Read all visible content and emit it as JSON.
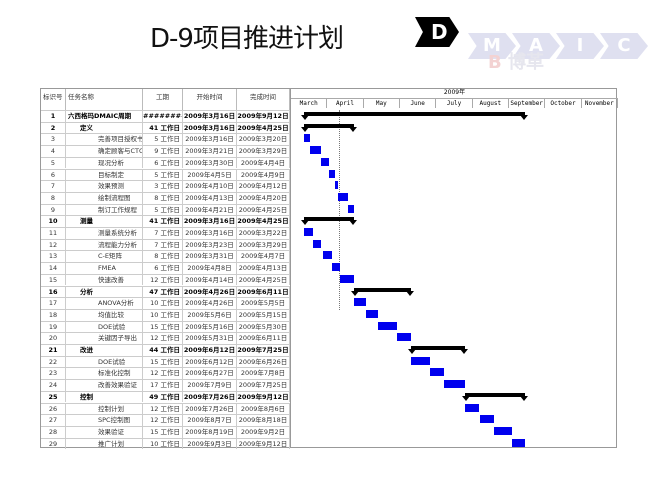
{
  "title": "D-9项目推进计划",
  "logo": {
    "letters": [
      "D",
      "M",
      "A",
      "I",
      "C"
    ],
    "watermark": "博革"
  },
  "table": {
    "headers": [
      "标识号",
      "任务名称",
      "工期",
      "开始时间",
      "完成时间"
    ],
    "rows": [
      {
        "id": "1",
        "name": "六西格玛DMAIC周期",
        "duration": "########",
        "start": "2009年3月16日",
        "end": "2009年9月12日",
        "summary": true,
        "indent": 0
      },
      {
        "id": "2",
        "name": "定义",
        "duration": "41 工作日",
        "start": "2009年3月16日",
        "end": "2009年4月25日",
        "summary": true,
        "indent": 1
      },
      {
        "id": "3",
        "name": "完善项目授权书",
        "duration": "5 工作日",
        "start": "2009年3月16日",
        "end": "2009年3月20日",
        "indent": 2
      },
      {
        "id": "4",
        "name": "确定顾客与CTQ",
        "duration": "9 工作日",
        "start": "2009年3月21日",
        "end": "2009年3月29日",
        "indent": 2
      },
      {
        "id": "5",
        "name": "现况分析",
        "duration": "6 工作日",
        "start": "2009年3月30日",
        "end": "2009年4月4日",
        "indent": 2
      },
      {
        "id": "6",
        "name": "目标制定",
        "duration": "5 工作日",
        "start": "2009年4月5日",
        "end": "2009年4月9日",
        "indent": 2
      },
      {
        "id": "7",
        "name": "效果预测",
        "duration": "3 工作日",
        "start": "2009年4月10日",
        "end": "2009年4月12日",
        "indent": 2
      },
      {
        "id": "8",
        "name": "绘制流程图",
        "duration": "8 工作日",
        "start": "2009年4月13日",
        "end": "2009年4月20日",
        "indent": 2
      },
      {
        "id": "9",
        "name": "制订工作规程",
        "duration": "5 工作日",
        "start": "2009年4月21日",
        "end": "2009年4月25日",
        "indent": 2
      },
      {
        "id": "10",
        "name": "测量",
        "duration": "41 工作日",
        "start": "2009年3月16日",
        "end": "2009年4月25日",
        "summary": true,
        "indent": 1
      },
      {
        "id": "11",
        "name": "测量系统分析",
        "duration": "7 工作日",
        "start": "2009年3月16日",
        "end": "2009年3月22日",
        "indent": 2
      },
      {
        "id": "12",
        "name": "流程能力分析",
        "duration": "7 工作日",
        "start": "2009年3月23日",
        "end": "2009年3月29日",
        "indent": 2
      },
      {
        "id": "13",
        "name": "C-E矩阵",
        "duration": "8 工作日",
        "start": "2009年3月31日",
        "end": "2009年4月7日",
        "indent": 2
      },
      {
        "id": "14",
        "name": "FMEA",
        "duration": "6 工作日",
        "start": "2009年4月8日",
        "end": "2009年4月13日",
        "indent": 2
      },
      {
        "id": "15",
        "name": "快速改善",
        "duration": "12 工作日",
        "start": "2009年4月14日",
        "end": "2009年4月25日",
        "indent": 2
      },
      {
        "id": "16",
        "name": "分析",
        "duration": "47 工作日",
        "start": "2009年4月26日",
        "end": "2009年6月11日",
        "summary": true,
        "indent": 1
      },
      {
        "id": "17",
        "name": "ANOVA分析",
        "duration": "10 工作日",
        "start": "2009年4月26日",
        "end": "2009年5月5日",
        "indent": 2
      },
      {
        "id": "18",
        "name": "均值比较",
        "duration": "10 工作日",
        "start": "2009年5月6日",
        "end": "2009年5月15日",
        "indent": 2
      },
      {
        "id": "19",
        "name": "DOE试验",
        "duration": "15 工作日",
        "start": "2009年5月16日",
        "end": "2009年5月30日",
        "indent": 2
      },
      {
        "id": "20",
        "name": "关键因子导出",
        "duration": "12 工作日",
        "start": "2009年5月31日",
        "end": "2009年6月11日",
        "indent": 2
      },
      {
        "id": "21",
        "name": "改进",
        "duration": "44 工作日",
        "start": "2009年6月12日",
        "end": "2009年7月25日",
        "summary": true,
        "indent": 1
      },
      {
        "id": "22",
        "name": "DOE试验",
        "duration": "15 工作日",
        "start": "2009年6月12日",
        "end": "2009年6月26日",
        "indent": 2
      },
      {
        "id": "23",
        "name": "标准化控制",
        "duration": "12 工作日",
        "start": "2009年6月27日",
        "end": "2009年7月8日",
        "indent": 2
      },
      {
        "id": "24",
        "name": "改善效果验证",
        "duration": "17 工作日",
        "start": "2009年7月9日",
        "end": "2009年7月25日",
        "indent": 2
      },
      {
        "id": "25",
        "name": "控制",
        "duration": "49 工作日",
        "start": "2009年7月26日",
        "end": "2009年9月12日",
        "summary": true,
        "indent": 1
      },
      {
        "id": "26",
        "name": "控制计划",
        "duration": "12 工作日",
        "start": "2009年7月26日",
        "end": "2009年8月6日",
        "indent": 2
      },
      {
        "id": "27",
        "name": "SPC控制图",
        "duration": "12 工作日",
        "start": "2009年8月7日",
        "end": "2009年8月18日",
        "indent": 2
      },
      {
        "id": "28",
        "name": "效果验证",
        "duration": "15 工作日",
        "start": "2009年8月19日",
        "end": "2009年9月2日",
        "indent": 2
      },
      {
        "id": "29",
        "name": "推广计划",
        "duration": "10 工作日",
        "start": "2009年9月3日",
        "end": "2009年9月12日",
        "indent": 2
      }
    ]
  },
  "gantt": {
    "year_label": "2009年",
    "months": [
      "March",
      "April",
      "May",
      "June",
      "July",
      "August",
      "September",
      "October",
      "November"
    ],
    "bar_color": "#0000ee",
    "summary_color": "#000000"
  }
}
